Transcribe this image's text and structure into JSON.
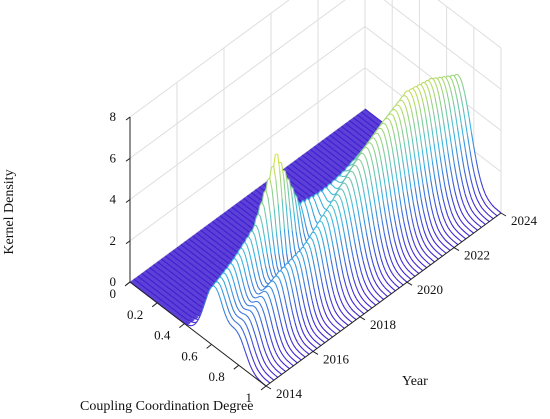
{
  "chart_data": {
    "type": "surface",
    "x_label": "Coupling Coordination Degree",
    "y_label": "Year",
    "z_label": "Kernel Density",
    "x_ticks": [
      "0",
      "0.2",
      "0.4",
      "0.6",
      "0.8",
      "1"
    ],
    "y_ticks": [
      "2014",
      "2016",
      "2018",
      "2020",
      "2022",
      "2024"
    ],
    "z_ticks": [
      "0",
      "2",
      "4",
      "6",
      "8"
    ],
    "x_range": [
      0,
      1
    ],
    "y_range": [
      2014,
      2024
    ],
    "z_range": [
      0,
      8
    ],
    "grid": true,
    "colormap": "cool-blue-to-yellow",
    "colors": {
      "low": "#3f1fd0",
      "mid": "#3bb7e0",
      "high": "#f4ee2a",
      "grid": "#dedede"
    },
    "series": [
      {
        "year": 2014,
        "peaks": [
          {
            "x": 0.62,
            "z": 2.9,
            "width": 0.07
          },
          {
            "x": 0.79,
            "z": 1.4,
            "width": 0.06
          }
        ]
      },
      {
        "year": 2015,
        "peaks": [
          {
            "x": 0.6,
            "z": 3.3,
            "width": 0.065
          },
          {
            "x": 0.78,
            "z": 2.0,
            "width": 0.06
          }
        ]
      },
      {
        "year": 2016,
        "peaks": [
          {
            "x": 0.58,
            "z": 4.0,
            "width": 0.06
          },
          {
            "x": 0.77,
            "z": 2.7,
            "width": 0.06
          }
        ]
      },
      {
        "year": 2017,
        "peaks": [
          {
            "x": 0.56,
            "z": 6.6,
            "width": 0.045
          },
          {
            "x": 0.76,
            "z": 3.0,
            "width": 0.06
          }
        ]
      },
      {
        "year": 2018,
        "peaks": [
          {
            "x": 0.55,
            "z": 3.2,
            "width": 0.05
          },
          {
            "x": 0.74,
            "z": 3.6,
            "width": 0.07
          }
        ]
      },
      {
        "year": 2019,
        "peaks": [
          {
            "x": 0.56,
            "z": 2.6,
            "width": 0.05
          },
          {
            "x": 0.72,
            "z": 4.2,
            "width": 0.08
          }
        ]
      },
      {
        "year": 2020,
        "peaks": [
          {
            "x": 0.57,
            "z": 2.3,
            "width": 0.05
          },
          {
            "x": 0.71,
            "z": 5.0,
            "width": 0.08
          }
        ]
      },
      {
        "year": 2021,
        "peaks": [
          {
            "x": 0.58,
            "z": 2.0,
            "width": 0.05
          },
          {
            "x": 0.7,
            "z": 5.4,
            "width": 0.08
          }
        ]
      },
      {
        "year": 2022,
        "peaks": [
          {
            "x": 0.59,
            "z": 1.8,
            "width": 0.05
          },
          {
            "x": 0.69,
            "z": 5.6,
            "width": 0.08
          }
        ]
      },
      {
        "year": 2023,
        "peaks": [
          {
            "x": 0.6,
            "z": 1.5,
            "width": 0.05
          },
          {
            "x": 0.69,
            "z": 5.3,
            "width": 0.08
          }
        ]
      },
      {
        "year": 2024,
        "peaks": [
          {
            "x": 0.61,
            "z": 1.2,
            "width": 0.05
          },
          {
            "x": 0.7,
            "z": 4.8,
            "width": 0.08
          }
        ]
      }
    ]
  }
}
